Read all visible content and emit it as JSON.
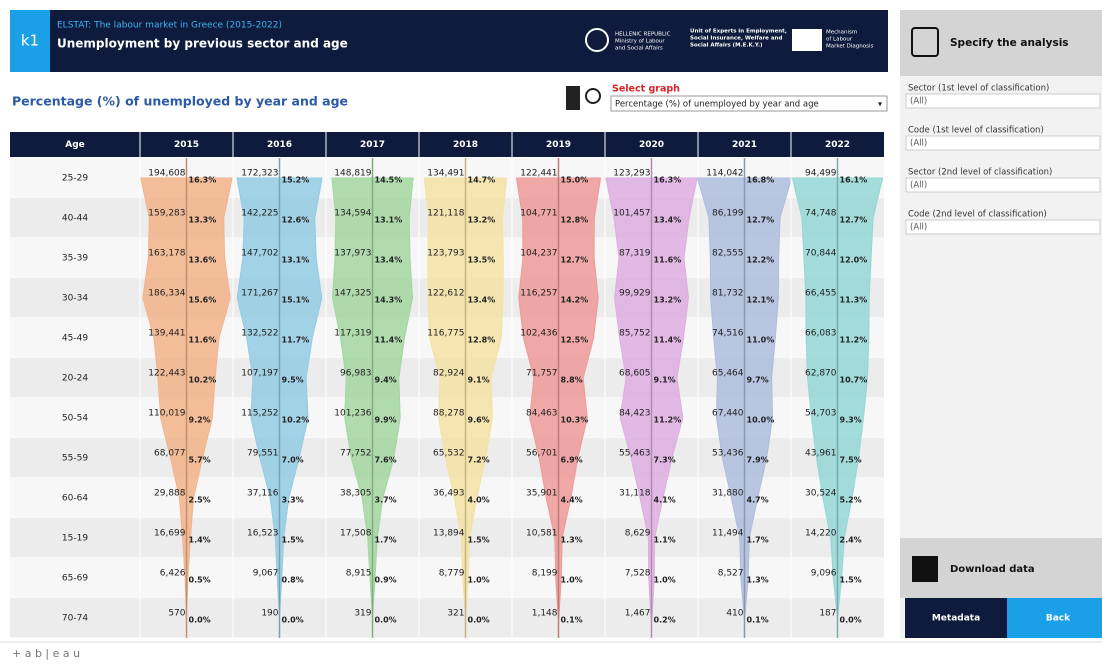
{
  "header": {
    "badge": "k1",
    "source": "ELSTAT: The labour market in Greece (2015-2022)",
    "title": "Unemployment by previous sector and age",
    "logo_ministry": [
      "HELLENIC REPUBLIC",
      "Ministry of Labour",
      "and Social Affairs"
    ],
    "logo_unit": [
      "Unit of Experts in Employment,",
      "Social Insurance, Welfare and",
      "Social Affairs (M.E.K.Y.)"
    ],
    "logo_mechanism": [
      "Mechanism",
      "of Labour",
      "Market Diagnosis"
    ]
  },
  "graph_selector": {
    "label": "Select graph",
    "selected": "Percentage (%) of unemployed by year and age"
  },
  "chart_data": {
    "type": "violin-table",
    "title": "Percentage (%) of unemployed by year and age",
    "age_header": "Age",
    "categories": [
      "25-29",
      "40-44",
      "35-39",
      "30-34",
      "45-49",
      "20-24",
      "50-54",
      "55-59",
      "60-64",
      "15-19",
      "65-69",
      "70-74"
    ],
    "series": [
      {
        "name": "2015",
        "color": "#f3b38a",
        "counts": [
          "194,608",
          "159,283",
          "163,178",
          "186,334",
          "139,441",
          "122,443",
          "110,019",
          "68,077",
          "29,888",
          "16,699",
          "6,426",
          "570"
        ],
        "values": [
          16.3,
          13.3,
          13.6,
          15.6,
          11.6,
          10.2,
          9.2,
          5.7,
          2.5,
          1.4,
          0.5,
          0.0
        ],
        "value_labels": [
          "16.3%",
          "13.3%",
          "13.6%",
          "15.6%",
          "11.6%",
          "10.2%",
          "9.2%",
          "5.7%",
          "2.5%",
          "1.4%",
          "0.5%",
          "0.0%"
        ]
      },
      {
        "name": "2016",
        "color": "#93cbe3",
        "counts": [
          "172,323",
          "142,225",
          "147,702",
          "171,267",
          "132,522",
          "107,197",
          "115,252",
          "79,551",
          "37,116",
          "16,523",
          "9,067",
          "190"
        ],
        "values": [
          15.2,
          12.6,
          13.1,
          15.1,
          11.7,
          9.5,
          10.2,
          7.0,
          3.3,
          1.5,
          0.8,
          0.0
        ],
        "value_labels": [
          "15.2%",
          "12.6%",
          "13.1%",
          "15.1%",
          "11.7%",
          "9.5%",
          "10.2%",
          "7.0%",
          "3.3%",
          "1.5%",
          "0.8%",
          "0.0%"
        ]
      },
      {
        "name": "2017",
        "color": "#a3d6a0",
        "counts": [
          "148,819",
          "134,594",
          "137,973",
          "147,325",
          "117,319",
          "96,983",
          "101,236",
          "77,752",
          "38,305",
          "17,508",
          "8,915",
          "319"
        ],
        "values": [
          14.5,
          13.1,
          13.4,
          14.3,
          11.4,
          9.4,
          9.9,
          7.6,
          3.7,
          1.7,
          0.9,
          0.0
        ],
        "value_labels": [
          "14.5%",
          "13.1%",
          "13.4%",
          "14.3%",
          "11.4%",
          "9.4%",
          "9.9%",
          "7.6%",
          "3.7%",
          "1.7%",
          "0.9%",
          "0.0%"
        ]
      },
      {
        "name": "2018",
        "color": "#f4e2a3",
        "counts": [
          "134,491",
          "121,118",
          "123,793",
          "122,612",
          "116,775",
          "82,924",
          "88,278",
          "65,532",
          "36,493",
          "13,894",
          "8,779",
          "321"
        ],
        "values": [
          14.7,
          13.2,
          13.5,
          13.4,
          12.8,
          9.1,
          9.6,
          7.2,
          4.0,
          1.5,
          1.0,
          0.0
        ],
        "value_labels": [
          "14.7%",
          "13.2%",
          "13.5%",
          "13.4%",
          "12.8%",
          "9.1%",
          "9.6%",
          "7.2%",
          "4.0%",
          "1.5%",
          "1.0%",
          "0.0%"
        ]
      },
      {
        "name": "2019",
        "color": "#ee9a98",
        "counts": [
          "122,441",
          "104,771",
          "104,237",
          "116,257",
          "102,436",
          "71,757",
          "84,463",
          "56,701",
          "35,901",
          "10,581",
          "8,199",
          "1,148"
        ],
        "values": [
          15.0,
          12.8,
          12.7,
          14.2,
          12.5,
          8.8,
          10.3,
          6.9,
          4.4,
          1.3,
          1.0,
          0.1
        ],
        "value_labels": [
          "15.0%",
          "12.8%",
          "12.7%",
          "14.2%",
          "12.5%",
          "8.8%",
          "10.3%",
          "6.9%",
          "4.4%",
          "1.3%",
          "1.0%",
          "0.1%"
        ]
      },
      {
        "name": "2020",
        "color": "#deaee0",
        "counts": [
          "123,293",
          "101,457",
          "87,319",
          "99,929",
          "85,752",
          "68,605",
          "84,423",
          "55,463",
          "31,118",
          "8,629",
          "7,528",
          "1,467"
        ],
        "values": [
          16.3,
          13.4,
          11.6,
          13.2,
          11.4,
          9.1,
          11.2,
          7.3,
          4.1,
          1.1,
          1.0,
          0.2
        ],
        "value_labels": [
          "16.3%",
          "13.4%",
          "11.6%",
          "13.2%",
          "11.4%",
          "9.1%",
          "11.2%",
          "7.3%",
          "4.1%",
          "1.1%",
          "1.0%",
          "0.2%"
        ]
      },
      {
        "name": "2021",
        "color": "#adbddd",
        "counts": [
          "114,042",
          "86,199",
          "82,555",
          "81,732",
          "74,516",
          "65,464",
          "67,440",
          "53,436",
          "31,880",
          "11,494",
          "8,527",
          "410"
        ],
        "values": [
          16.8,
          12.7,
          12.2,
          12.1,
          11.0,
          9.7,
          10.0,
          7.9,
          4.7,
          1.7,
          1.3,
          0.1
        ],
        "value_labels": [
          "16.8%",
          "12.7%",
          "12.2%",
          "12.1%",
          "11.0%",
          "9.7%",
          "10.0%",
          "7.9%",
          "4.7%",
          "1.7%",
          "1.3%",
          "0.1%"
        ]
      },
      {
        "name": "2022",
        "color": "#94d7d6",
        "counts": [
          "94,499",
          "74,748",
          "70,844",
          "66,455",
          "66,083",
          "62,870",
          "54,703",
          "43,961",
          "30,524",
          "14,220",
          "9,096",
          "187"
        ],
        "values": [
          16.1,
          12.7,
          12.0,
          11.3,
          11.2,
          10.7,
          9.3,
          7.5,
          5.2,
          2.4,
          1.5,
          0.0
        ],
        "value_labels": [
          "16.1%",
          "12.7%",
          "12.0%",
          "11.3%",
          "11.2%",
          "10.7%",
          "9.3%",
          "7.5%",
          "5.2%",
          "2.4%",
          "1.5%",
          "0.0%"
        ]
      }
    ]
  },
  "sidebar": {
    "specify": "Specify the analysis",
    "filters": [
      {
        "label": "Sector (1st level of classification)",
        "value": "(All)"
      },
      {
        "label": "Code (1st level of classification)",
        "value": "(All)"
      },
      {
        "label": "Sector (2nd level of classification)",
        "value": "(All)"
      },
      {
        "label": "Code (2nd level of classification)",
        "value": "(All)"
      }
    ],
    "download": "Download data",
    "metadata": "Metadata",
    "back": "Back"
  },
  "footer": {
    "brand": "+ a b | e a u"
  }
}
